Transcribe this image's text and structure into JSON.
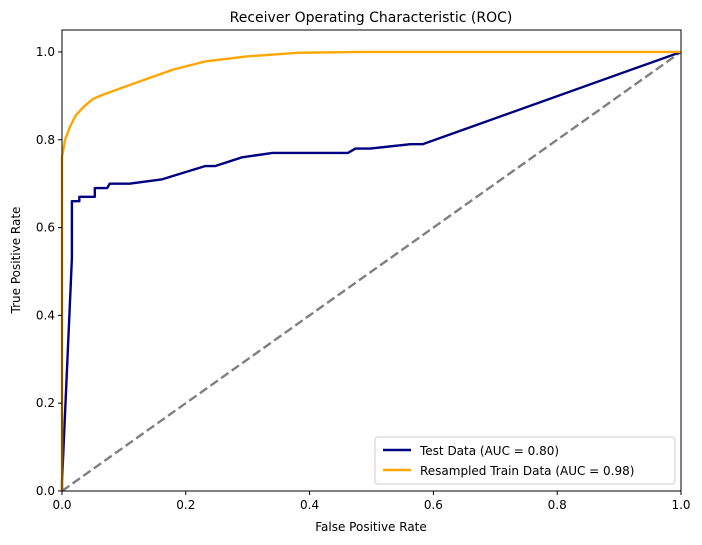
{
  "chart_data": {
    "type": "line",
    "title": "Receiver Operating Characteristic (ROC)",
    "xlabel": "False Positive Rate",
    "ylabel": "True Positive Rate",
    "xlim": [
      0.0,
      1.0
    ],
    "ylim": [
      0.0,
      1.05
    ],
    "xticks": [
      "0.0",
      "0.2",
      "0.4",
      "0.6",
      "0.8",
      "1.0"
    ],
    "yticks": [
      "0.0",
      "0.2",
      "0.4",
      "0.6",
      "0.8",
      "1.0"
    ],
    "grid": false,
    "legend_position": "lower-right",
    "series": [
      {
        "name": "Test Data (AUC = 0.80)",
        "color": "#000080",
        "style": "solid",
        "x": [
          0.0,
          0.0,
          0.016,
          0.016,
          0.024,
          0.028,
          0.028,
          0.053,
          0.053,
          0.073,
          0.073,
          0.077,
          0.077,
          0.109,
          0.162,
          0.231,
          0.247,
          0.291,
          0.34,
          0.462,
          0.474,
          0.498,
          0.563,
          0.583,
          1.0
        ],
        "y": [
          0.0,
          0.02,
          0.53,
          0.66,
          0.66,
          0.66,
          0.67,
          0.67,
          0.69,
          0.69,
          0.69,
          0.7,
          0.7,
          0.7,
          0.71,
          0.74,
          0.74,
          0.76,
          0.77,
          0.77,
          0.78,
          0.78,
          0.79,
          0.79,
          1.0
        ]
      },
      {
        "name": "Resampled Train Data (AUC = 0.98)",
        "color": "#FFA500",
        "style": "solid",
        "x": [
          0.0,
          0.0,
          0.005,
          0.013,
          0.022,
          0.035,
          0.05,
          0.065,
          0.1,
          0.14,
          0.18,
          0.23,
          0.3,
          0.38,
          0.48,
          1.0
        ],
        "y": [
          0.0,
          0.76,
          0.8,
          0.83,
          0.855,
          0.875,
          0.893,
          0.902,
          0.92,
          0.94,
          0.96,
          0.978,
          0.99,
          0.998,
          1.0,
          1.0
        ]
      },
      {
        "color": "#808080",
        "style": "dashed",
        "x": [
          0.0,
          1.0
        ],
        "y": [
          0.0,
          1.0
        ]
      }
    ]
  }
}
